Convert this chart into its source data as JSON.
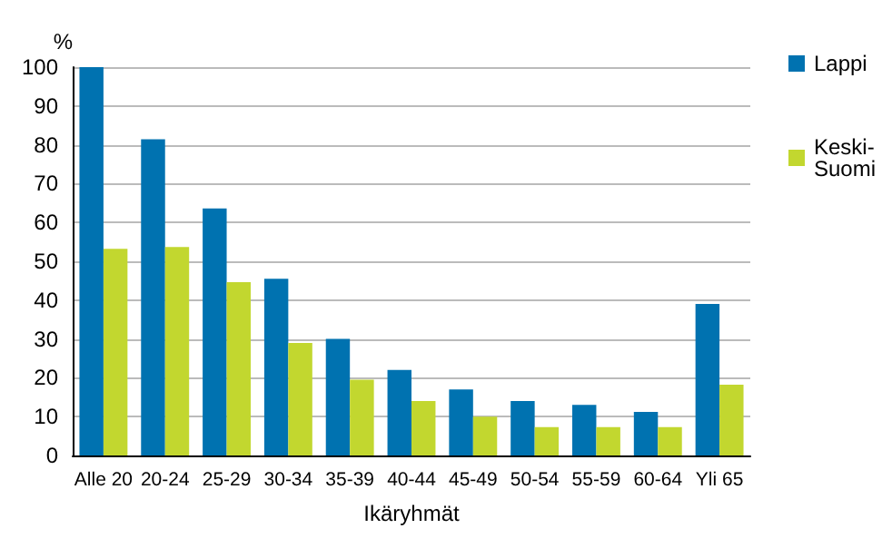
{
  "chart_data": {
    "type": "bar",
    "ylabel": "%",
    "xlabel": "Ikäryhmät",
    "categories": [
      "Alle 20",
      "20-24",
      "25-29",
      "30-34",
      "35-39",
      "40-44",
      "45-49",
      "50-54",
      "55-59",
      "60-64",
      "Yli 65"
    ],
    "series": [
      {
        "name": "Lappi",
        "color": "#0072b0",
        "values": [
          100,
          81.4,
          63.6,
          45.5,
          30,
          22,
          17,
          14,
          13,
          11.2,
          39
        ]
      },
      {
        "name": "Keski-\nSuomi",
        "color": "#c2d72f",
        "values": [
          53.2,
          53.7,
          44.6,
          29,
          19.5,
          14,
          10,
          7.3,
          7.3,
          7.3,
          18.2
        ]
      }
    ],
    "ylim": [
      0,
      100
    ],
    "yticks": [
      0,
      10,
      20,
      30,
      40,
      50,
      60,
      70,
      80,
      90,
      100
    ],
    "grid": "y",
    "legend": "top right"
  }
}
